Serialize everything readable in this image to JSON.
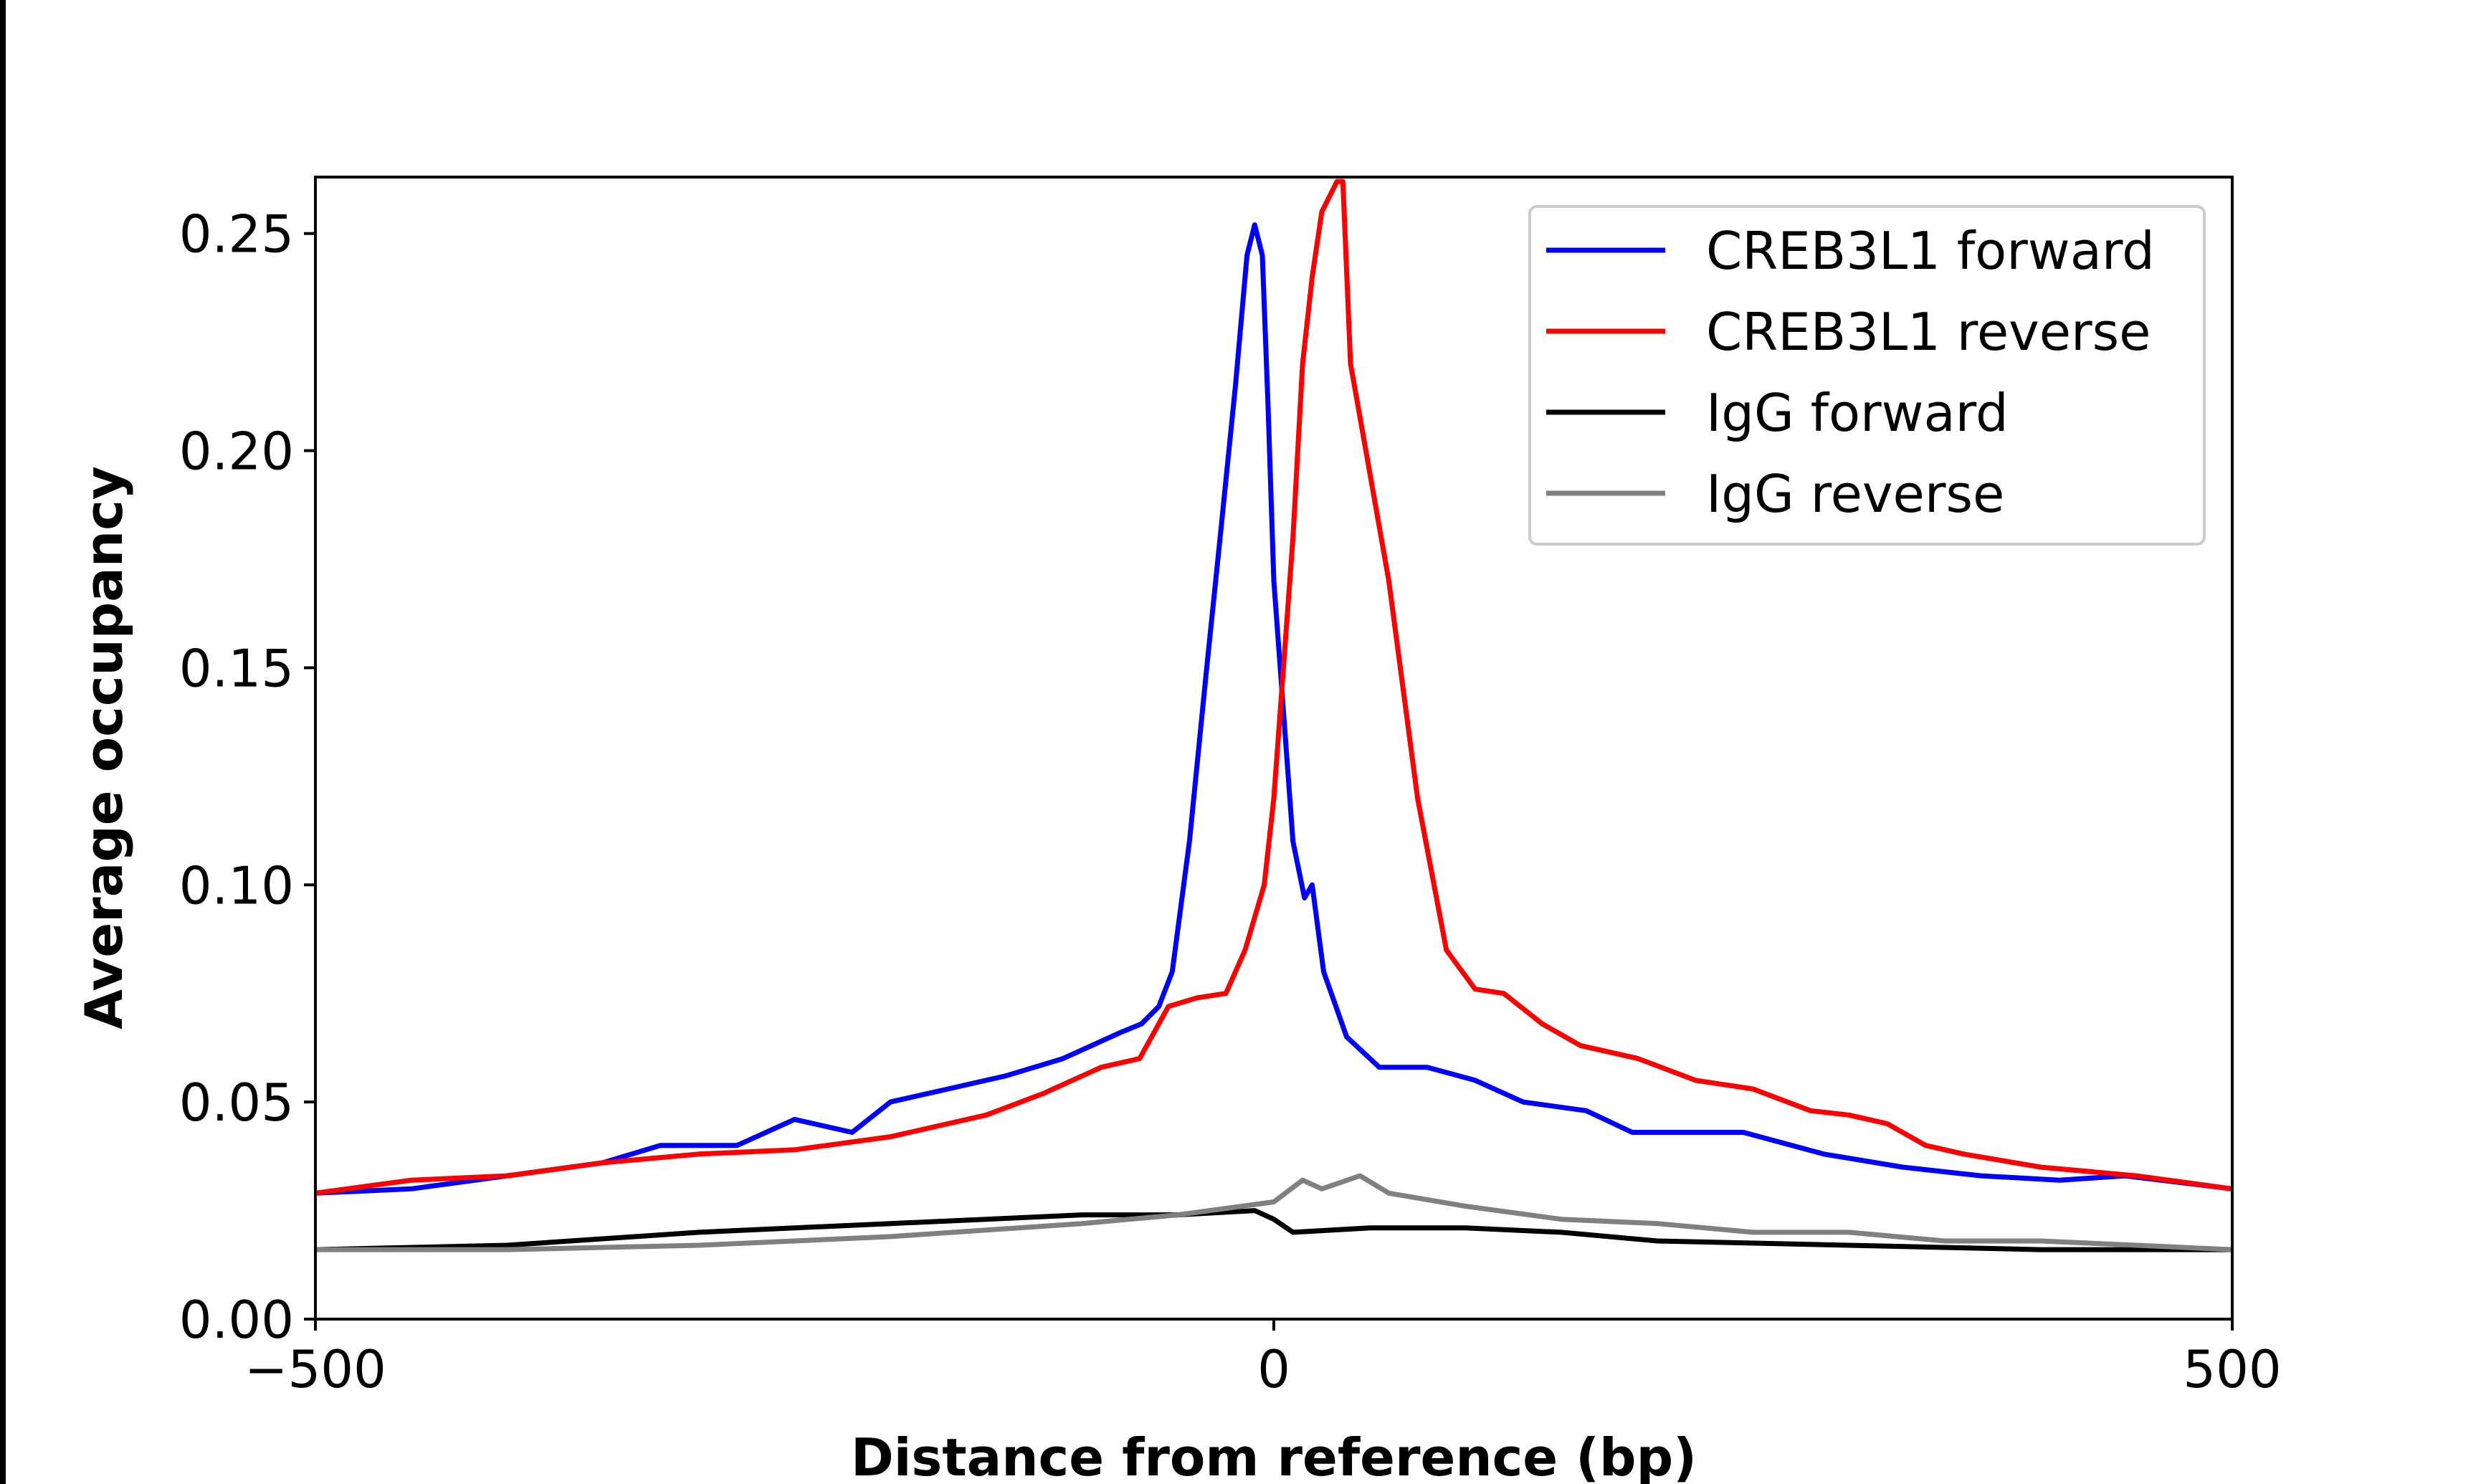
{
  "chart_data": {
    "type": "line",
    "title": "",
    "xlabel": "Distance from reference (bp)",
    "ylabel": "Average occupancy",
    "xlim": [
      -500,
      500
    ],
    "ylim": [
      0,
      0.263
    ],
    "xticks": [
      -500,
      0,
      500
    ],
    "xtick_labels": [
      "−500",
      "0",
      "500"
    ],
    "yticks": [
      0,
      0.05,
      0.1,
      0.15,
      0.2,
      0.25
    ],
    "ytick_labels": [
      "0.00",
      "0.05",
      "0.10",
      "0.15",
      "0.20",
      "0.25"
    ],
    "grid": false,
    "legend_position": "top-right",
    "series": [
      {
        "name": "CREB3L1 forward",
        "color": "#0000ff",
        "x": [
          -500,
          -450,
          -400,
          -350,
          -320,
          -280,
          -250,
          -220,
          -200,
          -170,
          -140,
          -110,
          -80,
          -69,
          -60,
          -53,
          -44,
          -35,
          -28,
          -20,
          -14,
          -10,
          -6,
          -3,
          0,
          5,
          10,
          16,
          20,
          26,
          38,
          55,
          80,
          105,
          130,
          163,
          187,
          245,
          287,
          328,
          369,
          410,
          444,
          500
        ],
        "y": [
          0.029,
          0.03,
          0.033,
          0.036,
          0.04,
          0.04,
          0.046,
          0.043,
          0.05,
          0.053,
          0.056,
          0.06,
          0.066,
          0.068,
          0.072,
          0.08,
          0.11,
          0.15,
          0.18,
          0.215,
          0.245,
          0.252,
          0.245,
          0.21,
          0.17,
          0.14,
          0.11,
          0.097,
          0.1,
          0.08,
          0.065,
          0.058,
          0.058,
          0.055,
          0.05,
          0.048,
          0.043,
          0.043,
          0.038,
          0.035,
          0.033,
          0.032,
          0.033,
          0.03
        ]
      },
      {
        "name": "CREB3L1 reverse",
        "color": "#ff0000",
        "x": [
          -500,
          -450,
          -400,
          -350,
          -300,
          -250,
          -200,
          -150,
          -120,
          -90,
          -70,
          -55,
          -40,
          -25,
          -15,
          -5,
          0,
          5,
          10,
          15,
          20,
          25,
          33,
          36,
          40,
          48,
          60,
          75,
          90,
          105,
          120,
          140,
          160,
          190,
          220,
          250,
          280,
          300,
          320,
          340,
          360,
          400,
          450,
          500
        ],
        "y": [
          0.029,
          0.032,
          0.033,
          0.036,
          0.038,
          0.039,
          0.042,
          0.047,
          0.052,
          0.058,
          0.06,
          0.072,
          0.074,
          0.075,
          0.085,
          0.1,
          0.12,
          0.15,
          0.18,
          0.22,
          0.24,
          0.255,
          0.262,
          0.262,
          0.22,
          0.2,
          0.17,
          0.12,
          0.085,
          0.076,
          0.075,
          0.068,
          0.063,
          0.06,
          0.055,
          0.053,
          0.048,
          0.047,
          0.045,
          0.04,
          0.038,
          0.035,
          0.033,
          0.03
        ]
      },
      {
        "name": "IgG forward",
        "color": "#000000",
        "x": [
          -500,
          -400,
          -300,
          -250,
          -200,
          -150,
          -100,
          -50,
          -10,
          0,
          10,
          50,
          100,
          150,
          200,
          300,
          400,
          500
        ],
        "y": [
          0.016,
          0.017,
          0.02,
          0.021,
          0.022,
          0.023,
          0.024,
          0.024,
          0.025,
          0.023,
          0.02,
          0.021,
          0.021,
          0.02,
          0.018,
          0.017,
          0.016,
          0.016
        ]
      },
      {
        "name": "IgG reverse",
        "color": "#808080",
        "x": [
          -500,
          -400,
          -300,
          -200,
          -100,
          -50,
          0,
          15,
          25,
          45,
          60,
          100,
          150,
          200,
          250,
          300,
          350,
          400,
          450,
          500
        ],
        "y": [
          0.016,
          0.016,
          0.017,
          0.019,
          0.022,
          0.024,
          0.027,
          0.032,
          0.03,
          0.033,
          0.029,
          0.026,
          0.023,
          0.022,
          0.02,
          0.02,
          0.018,
          0.018,
          0.017,
          0.016
        ]
      }
    ]
  }
}
